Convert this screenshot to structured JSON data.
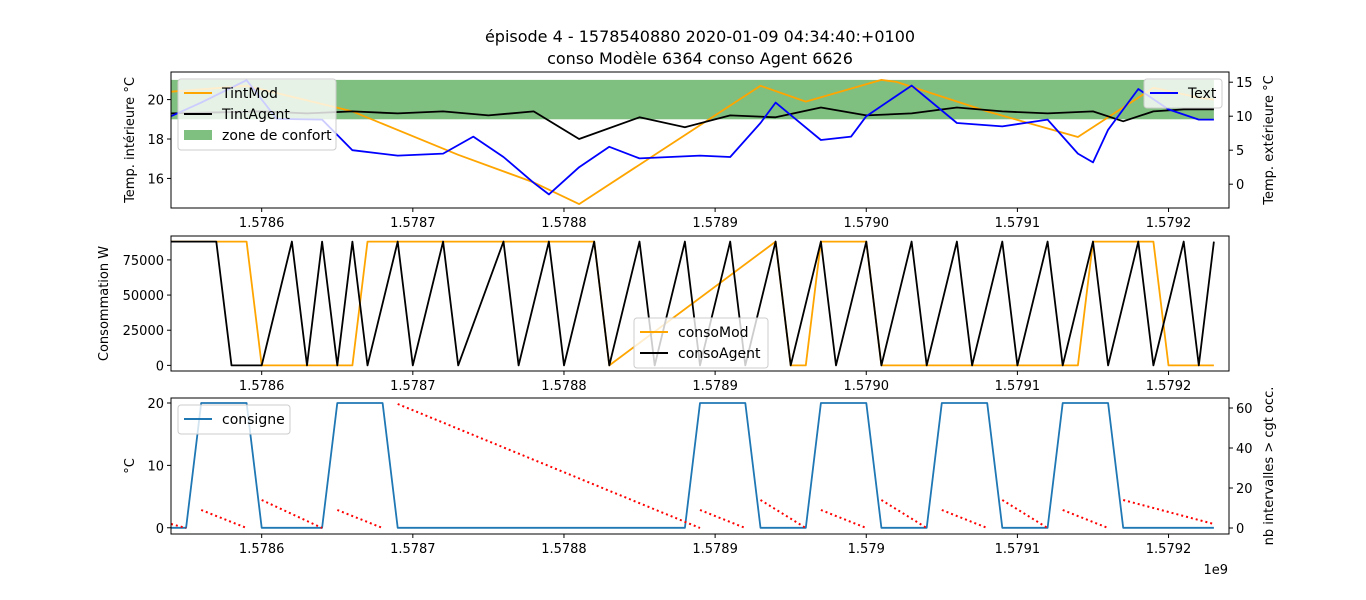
{
  "figure": {
    "title_line1": "épisode 4 - 1578540880 2020-01-09 04:34:40:+0100",
    "title_line2": "conso Modèle 6364 conso Agent 6626",
    "x_offset_label": "1e9"
  },
  "chart_data": [
    {
      "type": "line",
      "xlabel": "",
      "ylabel": "Temp. intérieure °C",
      "y2label": "Temp. extérieure °C",
      "xlim": [
        1.57854,
        1.57924
      ],
      "ylim": [
        14.5,
        21.4
      ],
      "y2lim": [
        -3.5,
        16.5
      ],
      "x_ticks": [
        1.5786,
        1.5787,
        1.5788,
        1.5789,
        1.579,
        1.5791,
        1.5792
      ],
      "x_tick_labels": [
        "1.5786",
        "1.5787",
        "1.5788",
        "1.5789",
        "1.5790",
        "1.5791",
        "1.5792"
      ],
      "y_ticks": [
        16,
        18,
        20
      ],
      "y2_ticks": [
        0,
        5,
        10,
        15
      ],
      "comfort_zone": {
        "name": "zone de confort",
        "y_range": [
          19,
          21
        ],
        "x_range": [
          1.57854,
          1.57923
        ],
        "color": "#008000"
      },
      "legend_left": "upper-left",
      "legend_right": "upper-right",
      "series": [
        {
          "name": "TintMod",
          "color": "#ffa500",
          "axis": "left",
          "x": [
            1.57854,
            1.57859,
            1.57866,
            1.57873,
            1.57878,
            1.57881,
            1.57893,
            1.57896,
            1.57901,
            1.57902,
            1.57908,
            1.57914,
            1.57919,
            1.57922,
            1.57923
          ],
          "y": [
            20.4,
            20.7,
            19.4,
            17.2,
            15.8,
            14.7,
            20.7,
            19.9,
            21.0,
            20.9,
            19.4,
            18.1,
            20.6,
            20.1,
            20.0
          ]
        },
        {
          "name": "TintAgent",
          "color": "#000000",
          "axis": "left",
          "x": [
            1.57854,
            1.5786,
            1.57863,
            1.57866,
            1.57869,
            1.57872,
            1.57875,
            1.57878,
            1.57881,
            1.57885,
            1.57888,
            1.57891,
            1.57894,
            1.57897,
            1.579,
            1.57903,
            1.57906,
            1.57909,
            1.57912,
            1.57915,
            1.57917,
            1.57919,
            1.57921,
            1.57923
          ],
          "y": [
            19.3,
            19.4,
            19.3,
            19.4,
            19.3,
            19.4,
            19.2,
            19.4,
            18.0,
            19.1,
            18.6,
            19.2,
            19.1,
            19.6,
            19.2,
            19.3,
            19.6,
            19.4,
            19.3,
            19.4,
            18.9,
            19.4,
            19.5,
            19.5
          ]
        },
        {
          "name": "Text",
          "color": "#0000ff",
          "axis": "right",
          "x": [
            1.57854,
            1.57856,
            1.57859,
            1.57861,
            1.57864,
            1.57866,
            1.57869,
            1.57872,
            1.57874,
            1.57876,
            1.57878,
            1.57879,
            1.57881,
            1.57883,
            1.57885,
            1.57887,
            1.57889,
            1.57891,
            1.57893,
            1.57894,
            1.57897,
            1.57899,
            1.579,
            1.57903,
            1.57906,
            1.57909,
            1.57912,
            1.57914,
            1.57915,
            1.57916,
            1.57918,
            1.5792,
            1.57922,
            1.57923
          ],
          "y": [
            10.0,
            12.0,
            15.3,
            9.6,
            9.5,
            5.0,
            4.2,
            4.5,
            7.0,
            4.0,
            0.2,
            -1.5,
            2.5,
            5.5,
            3.8,
            4.0,
            4.2,
            4.0,
            9.0,
            12.0,
            6.5,
            7.0,
            10.0,
            14.5,
            9.0,
            8.5,
            9.5,
            4.5,
            3.2,
            8.0,
            14.0,
            11.0,
            9.5,
            9.5
          ]
        }
      ]
    },
    {
      "type": "line",
      "xlabel": "",
      "ylabel": "Consommation W",
      "xlim": [
        1.57854,
        1.57924
      ],
      "ylim": [
        -4000,
        92000
      ],
      "x_ticks": [
        1.5786,
        1.5787,
        1.5788,
        1.5789,
        1.579,
        1.5791,
        1.5792
      ],
      "x_tick_labels": [
        "1.5786",
        "1.5787",
        "1.5788",
        "1.5789",
        "1.5790",
        "1.5791",
        "1.5792"
      ],
      "y_ticks": [
        0,
        25000,
        50000,
        75000
      ],
      "legend": "lower-center",
      "series": [
        {
          "name": "consoMod",
          "color": "#ffa500",
          "x": [
            1.57854,
            1.57859,
            1.5786,
            1.57866,
            1.57867,
            1.57882,
            1.57883,
            1.57894,
            1.57895,
            1.57896,
            1.57897,
            1.579,
            1.57901,
            1.57902,
            1.57903,
            1.57914,
            1.57915,
            1.57919,
            1.5792,
            1.57923
          ],
          "y": [
            88000,
            88000,
            0,
            0,
            88000,
            88000,
            0,
            88000,
            0,
            0,
            88000,
            88000,
            0,
            0,
            0,
            0,
            88000,
            88000,
            0,
            0
          ]
        },
        {
          "name": "consoAgent",
          "color": "#000000",
          "x": [
            1.57854,
            1.57857,
            1.57858,
            1.5786,
            1.57862,
            1.57863,
            1.57864,
            1.57865,
            1.57866,
            1.57867,
            1.57869,
            1.5787,
            1.57872,
            1.57873,
            1.57876,
            1.57877,
            1.57879,
            1.5788,
            1.57882,
            1.57883,
            1.57885,
            1.57886,
            1.57888,
            1.57889,
            1.57891,
            1.57892,
            1.57894,
            1.57895,
            1.57897,
            1.57898,
            1.579,
            1.57901,
            1.57903,
            1.57904,
            1.57906,
            1.57907,
            1.57909,
            1.5791,
            1.57912,
            1.57913,
            1.57915,
            1.57916,
            1.57918,
            1.57919,
            1.57921,
            1.57922,
            1.57923
          ],
          "y": [
            88000,
            88000,
            0,
            0,
            88000,
            0,
            88000,
            0,
            88000,
            0,
            88000,
            0,
            88000,
            0,
            88000,
            0,
            88000,
            0,
            88000,
            0,
            88000,
            0,
            88000,
            0,
            88000,
            0,
            88000,
            0,
            88000,
            0,
            88000,
            0,
            88000,
            0,
            88000,
            0,
            88000,
            0,
            88000,
            0,
            88000,
            0,
            88000,
            0,
            88000,
            0,
            88000
          ]
        }
      ]
    },
    {
      "type": "line",
      "xlabel": "",
      "ylabel": "°C",
      "y2label": "nb intervalles > cgt occ.",
      "xlim": [
        1.57854,
        1.57924
      ],
      "ylim": [
        -1,
        20.8
      ],
      "y2lim": [
        -3,
        65
      ],
      "x_ticks": [
        1.5786,
        1.5787,
        1.5788,
        1.5789,
        1.579,
        1.5791,
        1.5792
      ],
      "x_tick_labels": [
        "1.5786",
        "1.5787",
        "1.5788",
        "1.5789",
        "1.579",
        "1.5791",
        "1.5792"
      ],
      "y_ticks": [
        0,
        10,
        20
      ],
      "y2_ticks": [
        0,
        20,
        40,
        60
      ],
      "legend": "upper-left",
      "series": [
        {
          "name": "consigne",
          "color": "#1f77b4",
          "axis": "left",
          "x": [
            1.57854,
            1.57855,
            1.57856,
            1.57859,
            1.5786,
            1.57864,
            1.57865,
            1.57868,
            1.57869,
            1.57888,
            1.57889,
            1.57892,
            1.57893,
            1.57896,
            1.57897,
            1.579,
            1.57901,
            1.57904,
            1.57905,
            1.57908,
            1.57909,
            1.57912,
            1.57913,
            1.57916,
            1.57917,
            1.5792,
            1.57921,
            1.57923
          ],
          "y": [
            0,
            0,
            20,
            20,
            0,
            0,
            20,
            20,
            0,
            0,
            20,
            20,
            0,
            0,
            20,
            20,
            0,
            0,
            20,
            20,
            0,
            0,
            20,
            20,
            0,
            0,
            0,
            0
          ]
        },
        {
          "name": "",
          "color": "#ff0000",
          "style": "dotted",
          "axis": "right",
          "segments": [
            {
              "x": [
                1.57854,
                1.57855
              ],
              "y": [
                2,
                0
              ]
            },
            {
              "x": [
                1.57856,
                1.57859
              ],
              "y": [
                9,
                0
              ]
            },
            {
              "x": [
                1.5786,
                1.57864
              ],
              "y": [
                14,
                0
              ]
            },
            {
              "x": [
                1.57865,
                1.57868
              ],
              "y": [
                9,
                0
              ]
            },
            {
              "x": [
                1.57869,
                1.57889
              ],
              "y": [
                62,
                0
              ]
            },
            {
              "x": [
                1.57889,
                1.57892
              ],
              "y": [
                9,
                0
              ]
            },
            {
              "x": [
                1.57893,
                1.57896
              ],
              "y": [
                14,
                0
              ]
            },
            {
              "x": [
                1.57897,
                1.579
              ],
              "y": [
                9,
                0
              ]
            },
            {
              "x": [
                1.57901,
                1.57904
              ],
              "y": [
                14,
                0
              ]
            },
            {
              "x": [
                1.57905,
                1.57908
              ],
              "y": [
                9,
                0
              ]
            },
            {
              "x": [
                1.57909,
                1.57912
              ],
              "y": [
                14,
                0
              ]
            },
            {
              "x": [
                1.57913,
                1.57916
              ],
              "y": [
                9,
                0
              ]
            },
            {
              "x": [
                1.57917,
                1.57923
              ],
              "y": [
                14,
                2
              ]
            }
          ]
        }
      ]
    }
  ]
}
